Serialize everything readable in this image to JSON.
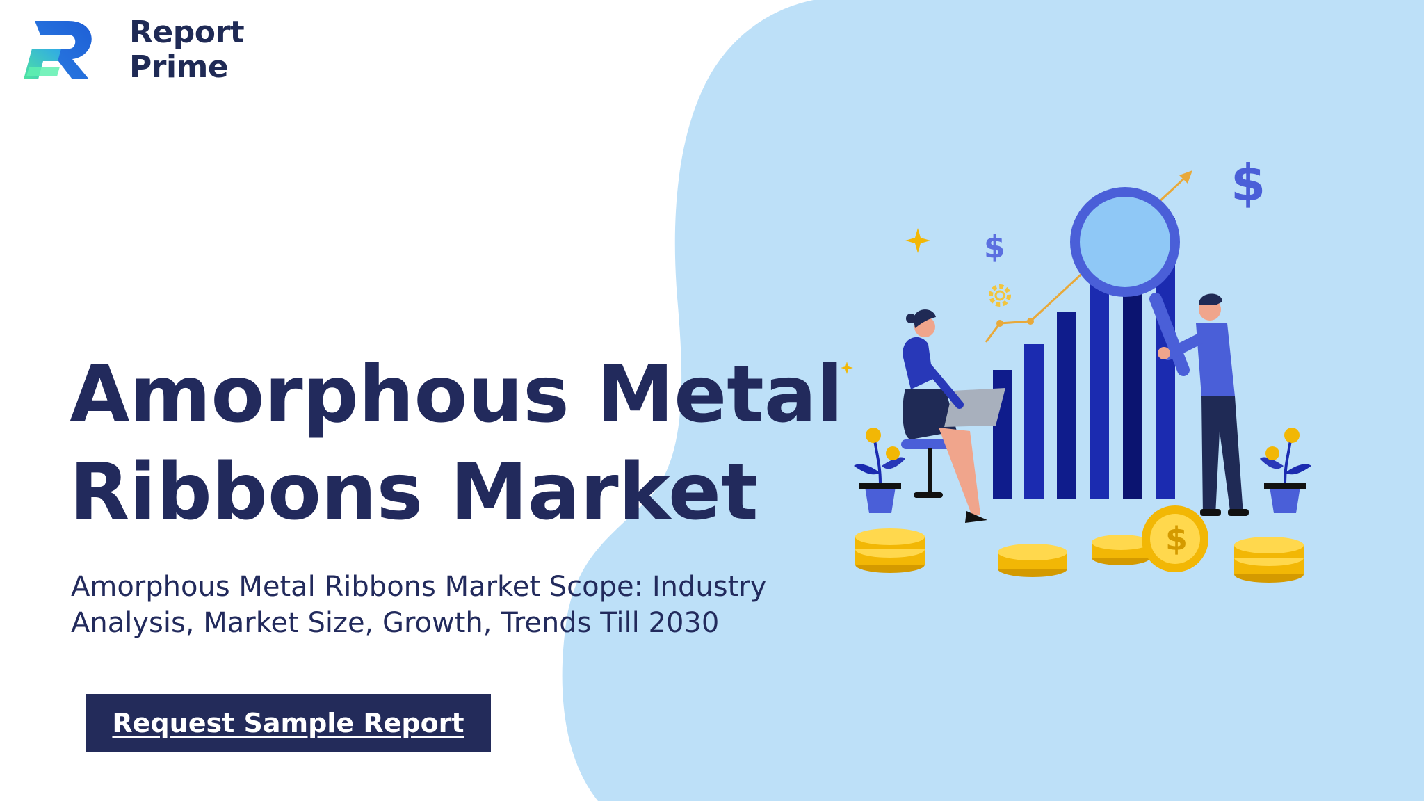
{
  "brand": {
    "name_line1": "Report",
    "name_line2": "Prime"
  },
  "hero": {
    "title_line1": "Amorphous Metal",
    "title_line2": "Ribbons Market",
    "subtitle_line1": "Amorphous Metal Ribbons Market Scope: Industry",
    "subtitle_line2": "Analysis, Market Size, Growth, Trends Till 2030",
    "cta_label": "Request Sample Report"
  },
  "illustration": {
    "dollar_symbol": "$",
    "icons": [
      "dollar-sign-icon",
      "gear-icon",
      "sparkle-icon",
      "magnifying-glass-icon",
      "trend-arrow-icon",
      "coin-stack-icon",
      "potted-plant-icon"
    ]
  },
  "colors": {
    "navy": "#222a5c",
    "blob": "#bde0f8",
    "bar_dark": "#0f1c8c",
    "bar_mid": "#1b2bb0",
    "accent_blue": "#4a5fd8",
    "gold": "#f2b705"
  }
}
